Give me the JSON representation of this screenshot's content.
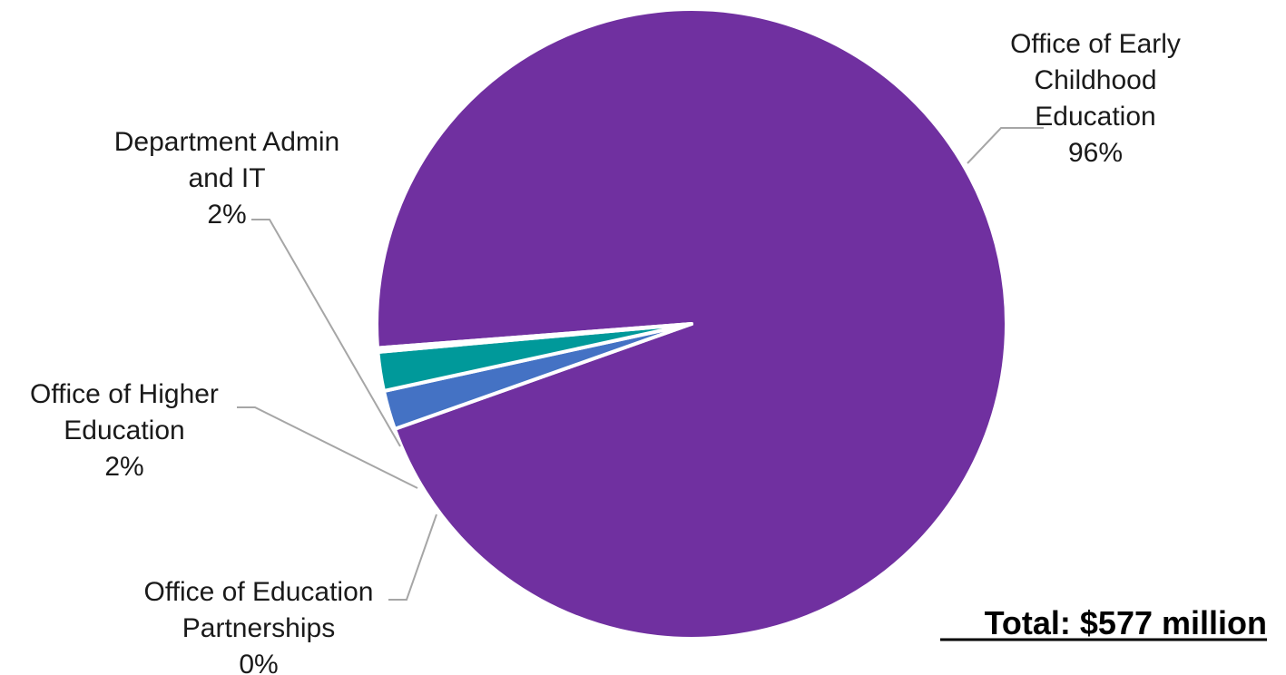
{
  "chart_data": {
    "type": "pie",
    "slices": [
      {
        "label": "Office of Early Childhood Education",
        "label_lines": [
          "Office of Early",
          "Childhood",
          "Education"
        ],
        "percent_text": "96%",
        "value": 96,
        "color": "#7030a0"
      },
      {
        "label": "Department Admin and IT",
        "label_lines": [
          "Department Admin",
          "and IT"
        ],
        "percent_text": "2%",
        "value": 2,
        "color": "#4472c4"
      },
      {
        "label": "Office of Higher Education",
        "label_lines": [
          "Office of Higher",
          "Education"
        ],
        "percent_text": "2%",
        "value": 2,
        "color": "#00999a"
      },
      {
        "label": "Office of Education Partnerships",
        "label_lines": [
          "Office of Education",
          "Partnerships"
        ],
        "percent_text": "0%",
        "value": 0.2,
        "color": "#ffffff"
      }
    ],
    "legend": "none",
    "leader_line_color": "#a6a6a6",
    "total": "Total: $577 million"
  }
}
